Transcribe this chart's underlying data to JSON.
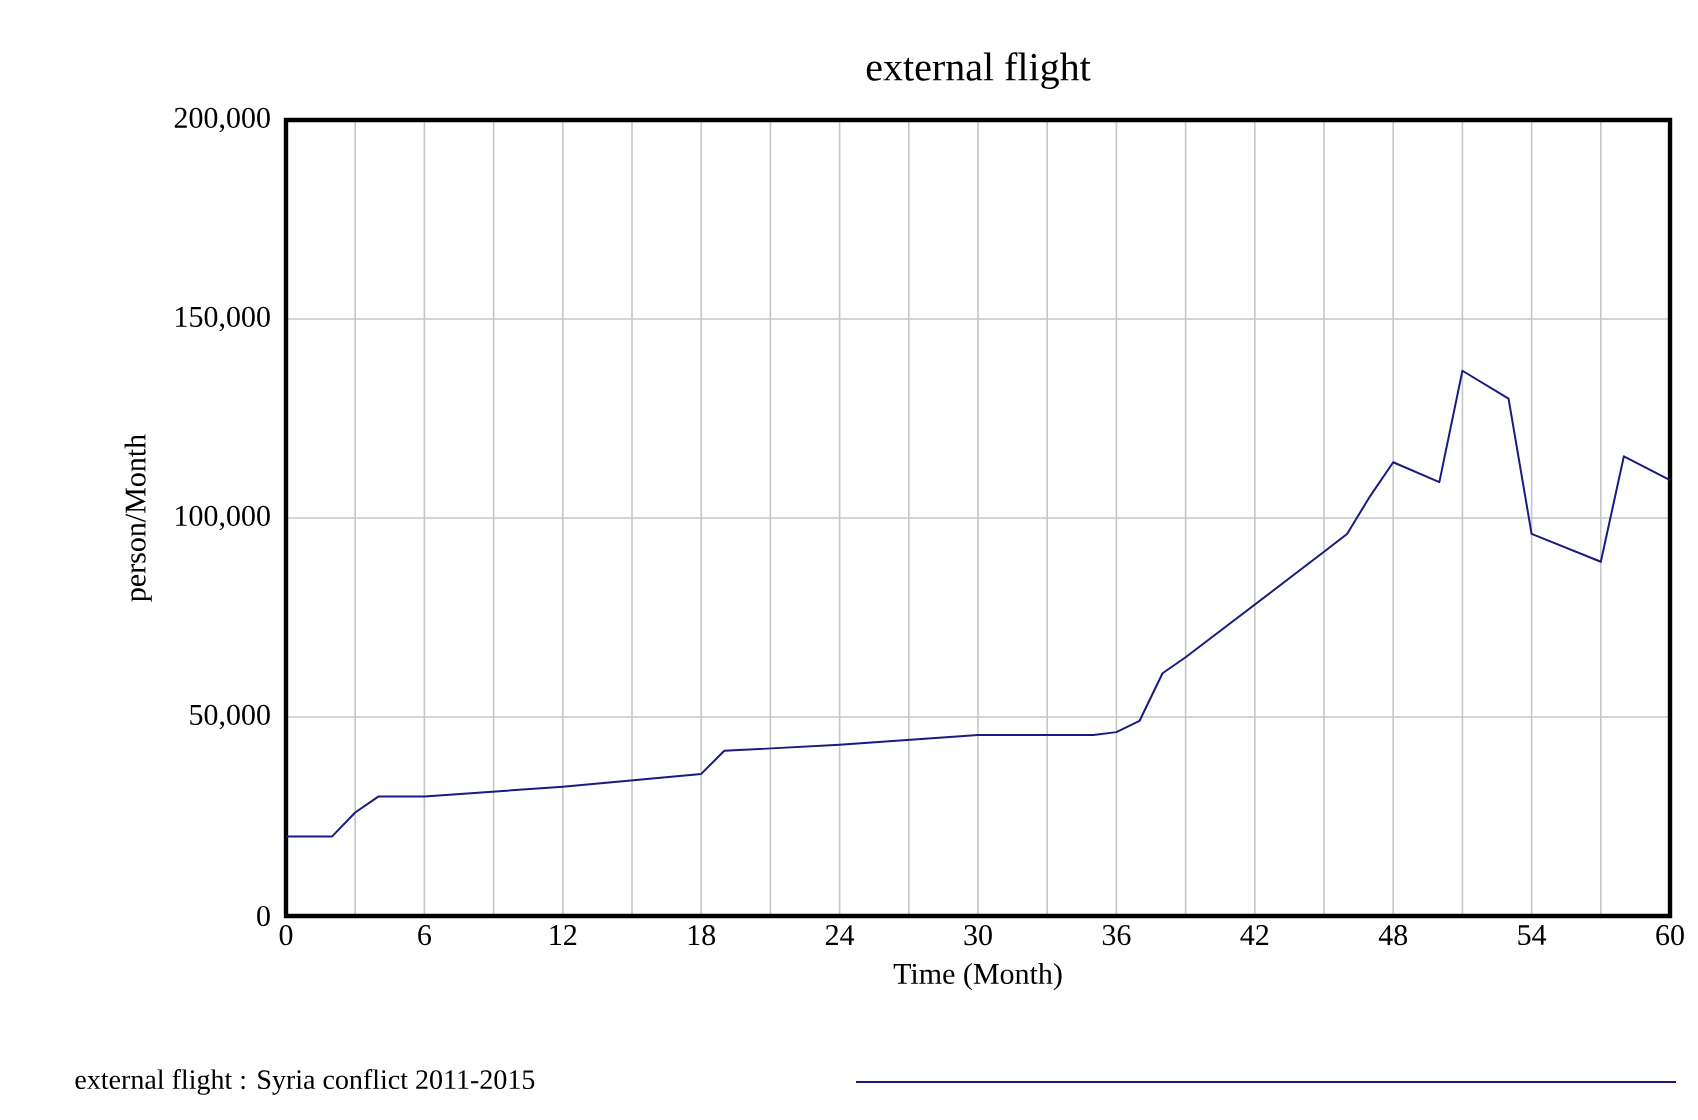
{
  "chart_data": {
    "type": "line",
    "title": "external flight",
    "xlabel": "Time (Month)",
    "ylabel": "person/Month",
    "xlim": [
      0,
      60
    ],
    "xticks": [
      0,
      {
        "value": 3,
        "label": null
      },
      6,
      {
        "value": 9,
        "label": null
      },
      12,
      {
        "value": 15,
        "label": null
      },
      18,
      {
        "value": 21,
        "label": null
      },
      24,
      {
        "value": 27,
        "label": null
      },
      30,
      {
        "value": 33,
        "label": null
      },
      36,
      {
        "value": 39,
        "label": null
      },
      42,
      {
        "value": 45,
        "label": null
      },
      48,
      {
        "value": 51,
        "label": null
      },
      54,
      {
        "value": 57,
        "label": null
      },
      60
    ],
    "ylim": [
      0,
      200000
    ],
    "yticks": [
      0,
      {
        "value": 50000,
        "label": "50,000"
      },
      {
        "value": 100000,
        "label": "100,000"
      },
      {
        "value": 150000,
        "label": "150,000"
      },
      {
        "value": 200000,
        "label": "200,000"
      }
    ],
    "grid": true,
    "legend": "bottom",
    "series": [
      {
        "name": "external flight : Syria conflict 2011-2015",
        "color": "#1a1a80",
        "x": [
          0,
          2,
          3,
          4,
          6,
          12,
          18,
          19,
          24,
          30,
          35,
          36,
          37,
          38,
          39,
          45,
          46,
          47,
          48,
          50,
          51,
          53,
          54,
          57,
          58,
          60
        ],
        "values": [
          20000,
          20000,
          26000,
          30000,
          30000,
          32500,
          35700,
          41500,
          43000,
          45500,
          45500,
          46200,
          49000,
          61000,
          65000,
          91500,
          96000,
          105500,
          114000,
          109000,
          137000,
          130000,
          96000,
          89000,
          115500,
          109500
        ]
      }
    ]
  }
}
